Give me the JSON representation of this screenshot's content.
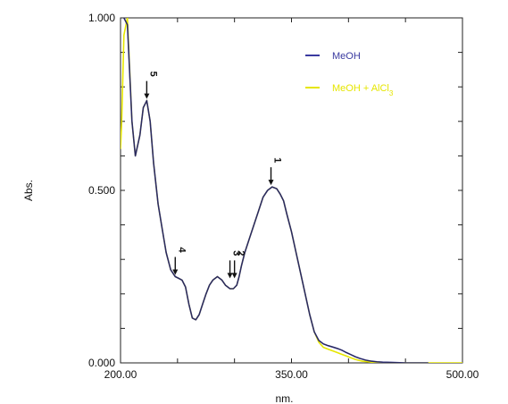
{
  "chart_data": {
    "type": "line",
    "title": "",
    "xlabel": "nm.",
    "ylabel": "Abs.",
    "xlim": [
      200,
      500
    ],
    "ylim": [
      0,
      1
    ],
    "x_ticks": [
      {
        "value": 200,
        "label": "200.00"
      },
      {
        "value": 350,
        "label": "350.00"
      },
      {
        "value": 500,
        "label": "500.00"
      }
    ],
    "y_ticks": [
      {
        "value": 0,
        "label": "0.000"
      },
      {
        "value": 0.5,
        "label": "0.500"
      },
      {
        "value": 1,
        "label": "1.000"
      }
    ],
    "grid": false,
    "legend_position": "top-right",
    "series": [
      {
        "name": "MeOH + AlCl3",
        "legend_html": "MeOH + AlCl<tspan baseline-shift=\"sub\" font-size=\"8\">3</tspan>",
        "color": "#e6e600",
        "x": [
          200,
          201,
          203,
          206,
          210,
          213,
          217,
          220,
          223,
          226,
          229,
          233,
          237,
          240,
          244,
          248,
          251,
          254,
          257,
          260,
          263,
          266,
          269,
          272,
          275,
          278,
          281,
          285,
          289,
          292,
          296,
          299,
          302,
          304,
          306,
          309,
          313,
          317,
          321,
          325,
          329,
          333,
          337,
          340,
          343,
          346,
          350,
          354,
          358,
          362,
          366,
          370,
          374,
          378,
          382,
          386,
          390,
          394,
          398,
          402,
          406,
          412,
          420,
          430,
          440,
          450,
          460,
          470,
          480,
          490,
          500
        ],
        "y": [
          0.62,
          0.7,
          0.95,
          1.0,
          0.7,
          0.6,
          0.66,
          0.74,
          0.76,
          0.7,
          0.58,
          0.46,
          0.38,
          0.32,
          0.27,
          0.25,
          0.245,
          0.24,
          0.22,
          0.17,
          0.13,
          0.125,
          0.14,
          0.17,
          0.2,
          0.225,
          0.24,
          0.25,
          0.24,
          0.225,
          0.215,
          0.215,
          0.225,
          0.25,
          0.28,
          0.32,
          0.36,
          0.4,
          0.44,
          0.48,
          0.5,
          0.51,
          0.505,
          0.49,
          0.47,
          0.43,
          0.38,
          0.32,
          0.26,
          0.2,
          0.14,
          0.09,
          0.06,
          0.045,
          0.04,
          0.035,
          0.03,
          0.025,
          0.02,
          0.015,
          0.01,
          0.005,
          0.002,
          0.001,
          0.0,
          0.0,
          0.0,
          0.0,
          0.0,
          0.0,
          0.0
        ]
      },
      {
        "name": "MeOH",
        "legend_html": "MeOH",
        "color": "#3a3aa0",
        "x": [
          203,
          206,
          210,
          213,
          217,
          220,
          223,
          226,
          229,
          233,
          237,
          240,
          244,
          248,
          251,
          254,
          257,
          260,
          263,
          266,
          269,
          272,
          275,
          278,
          281,
          285,
          289,
          292,
          296,
          299,
          302,
          304,
          306,
          309,
          313,
          317,
          321,
          325,
          329,
          333,
          337,
          340,
          343,
          346,
          350,
          354,
          358,
          362,
          366,
          370,
          374,
          378,
          382,
          386,
          390,
          394,
          398,
          402,
          406,
          410,
          415,
          420,
          425,
          430,
          440,
          450,
          460,
          470
        ],
        "y": [
          1.0,
          0.98,
          0.7,
          0.6,
          0.66,
          0.74,
          0.76,
          0.7,
          0.58,
          0.46,
          0.38,
          0.32,
          0.27,
          0.25,
          0.245,
          0.24,
          0.22,
          0.17,
          0.13,
          0.125,
          0.14,
          0.17,
          0.2,
          0.225,
          0.24,
          0.25,
          0.24,
          0.225,
          0.215,
          0.215,
          0.225,
          0.25,
          0.28,
          0.32,
          0.36,
          0.4,
          0.44,
          0.48,
          0.5,
          0.51,
          0.505,
          0.49,
          0.47,
          0.43,
          0.38,
          0.32,
          0.26,
          0.2,
          0.14,
          0.09,
          0.065,
          0.055,
          0.05,
          0.046,
          0.042,
          0.037,
          0.03,
          0.024,
          0.018,
          0.013,
          0.008,
          0.005,
          0.003,
          0.002,
          0.001,
          0.0,
          0.0,
          0.0
        ]
      }
    ],
    "peak_markers": [
      {
        "label": "1",
        "x": 332,
        "y": 0.51
      },
      {
        "label": "2",
        "x": 300,
        "y": 0.24
      },
      {
        "label": "3",
        "x": 296,
        "y": 0.24
      },
      {
        "label": "4",
        "x": 248,
        "y": 0.25
      },
      {
        "label": "5",
        "x": 223,
        "y": 0.76
      }
    ]
  }
}
